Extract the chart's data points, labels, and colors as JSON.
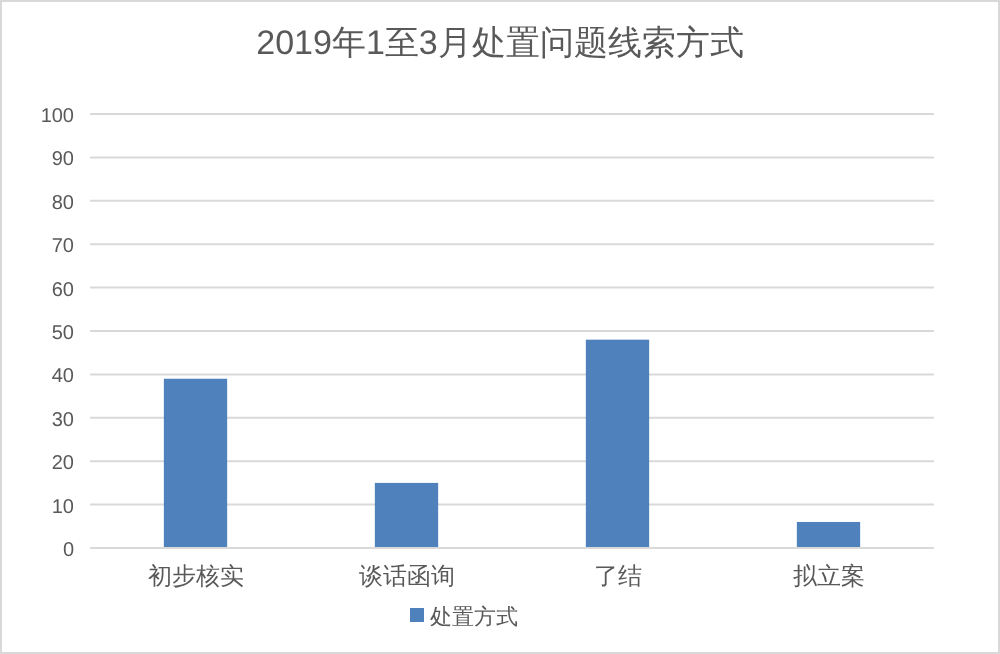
{
  "chart_data": {
    "type": "bar",
    "title": "2019年1至3月处置问题线索方式",
    "categories": [
      "初步核实",
      "谈话函询",
      "了结",
      "拟立案"
    ],
    "series": [
      {
        "name": "处置方式",
        "color": "#4f81bd",
        "values": [
          39,
          15,
          48,
          6
        ]
      }
    ],
    "ylim": [
      0,
      100
    ],
    "yticks": [
      0,
      10,
      20,
      30,
      40,
      50,
      60,
      70,
      80,
      90,
      100
    ],
    "grid": "y",
    "legend": "bottom"
  }
}
